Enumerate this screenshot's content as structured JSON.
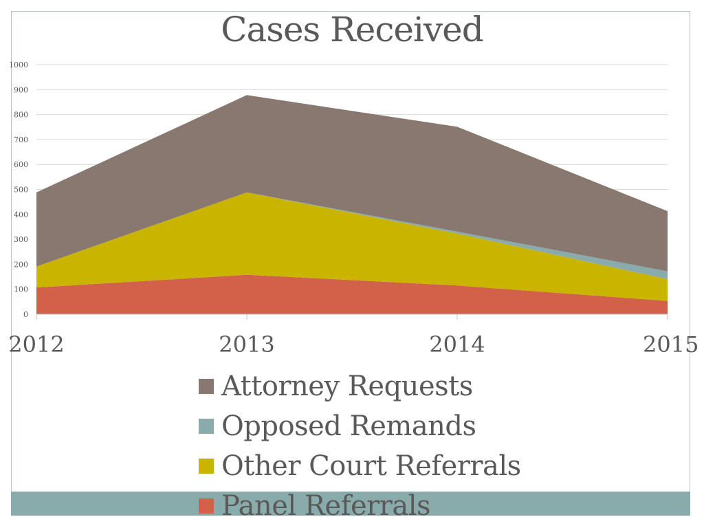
{
  "chart_data": {
    "type": "area",
    "stacked": true,
    "title": "Cases Received",
    "categories": [
      "2012",
      "2013",
      "2014",
      "2015"
    ],
    "series": [
      {
        "name": "Panel Referrals",
        "values": [
          107,
          158,
          115,
          53
        ],
        "color": "#d2614a"
      },
      {
        "name": "Other Court Referrals",
        "values": [
          84,
          330,
          208,
          87
        ],
        "color": "#c9b400"
      },
      {
        "name": "Opposed Remands",
        "values": [
          0,
          0,
          8,
          32
        ],
        "color": "#8aabab"
      },
      {
        "name": "Attorney Requests",
        "values": [
          297,
          390,
          420,
          241
        ],
        "color": "#887870"
      }
    ],
    "legend_order": [
      "Attorney Requests",
      "Opposed Remands",
      "Other Court Referrals",
      "Panel Referrals"
    ],
    "yticks": [
      "0",
      "100",
      "200",
      "300",
      "400",
      "500",
      "600",
      "700",
      "800",
      "900",
      "1000"
    ],
    "ylim": [
      0,
      1000
    ],
    "grid": true,
    "legend_position": "bottom",
    "xlabel": "",
    "ylabel": ""
  },
  "colors": {
    "band": "#8aabab",
    "grid": "#d9d9d9",
    "text": "#595959"
  }
}
